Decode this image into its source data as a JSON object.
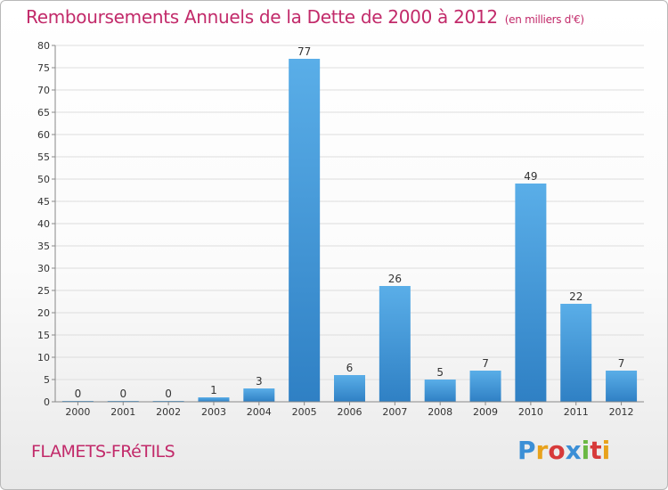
{
  "header": {
    "title": "Remboursements Annuels de la Dette de 2000 à 2012",
    "unit": "(en milliers d'€)"
  },
  "footer": {
    "commune": "FLAMETS-FRéTILS",
    "logo_text": "Proxiti",
    "logo_colors": [
      "#3b8fd6",
      "#e8a21c",
      "#d73a3a",
      "#3b8fd6",
      "#6ab843",
      "#d73a3a",
      "#e8a21c"
    ]
  },
  "colors": {
    "bar_light": "#5aaee8",
    "bar_dark": "#2f80c4",
    "grid": "#dddddd",
    "axis": "#888888"
  },
  "chart_data": {
    "type": "bar",
    "categories": [
      "2000",
      "2001",
      "2002",
      "2003",
      "2004",
      "2005",
      "2006",
      "2007",
      "2008",
      "2009",
      "2010",
      "2011",
      "2012"
    ],
    "values": [
      0,
      0,
      0,
      1,
      3,
      77,
      6,
      26,
      5,
      7,
      49,
      22,
      7
    ],
    "data_labels": [
      "0",
      "0",
      "0",
      "1",
      "3",
      "77",
      "6",
      "26",
      "5",
      "7",
      "49",
      "22",
      "7"
    ],
    "title": "Remboursements Annuels de la Dette de 2000 à 2012",
    "xlabel": "",
    "ylabel": "",
    "ylim": [
      0,
      80
    ],
    "yticks": [
      0,
      5,
      10,
      15,
      20,
      25,
      30,
      35,
      40,
      45,
      50,
      55,
      60,
      65,
      70,
      75,
      80
    ],
    "grid": true,
    "legend": "none"
  }
}
